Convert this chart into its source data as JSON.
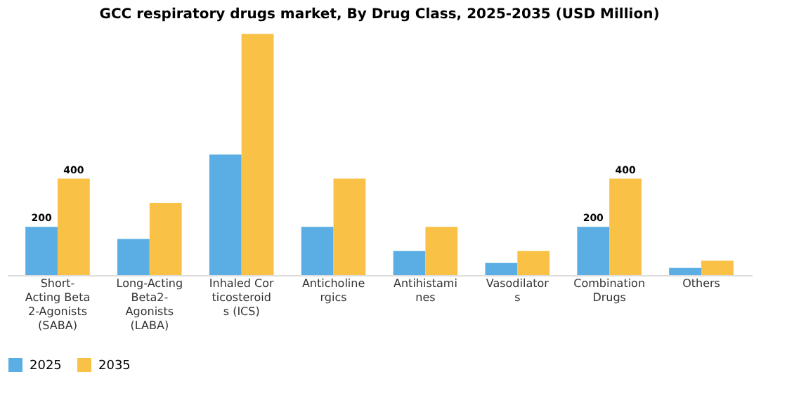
{
  "chart_data": {
    "type": "bar",
    "title": "GCC respiratory drugs market, By Drug Class, 2025-2035 (USD Million)",
    "categories": [
      "Short-Acting Beta2-Agonists (SABA)",
      "Long-Acting Beta2-Agonists (LABA)",
      "Inhaled Corticosteroids (ICS)",
      "Anticholinergics",
      "Antihistamines",
      "Vasodilators",
      "Combination Drugs",
      "Others"
    ],
    "series": [
      {
        "name": "2025",
        "color": "#5aaee3",
        "values": [
          200,
          150,
          500,
          200,
          100,
          50,
          200,
          30
        ],
        "value_labels": [
          "200",
          null,
          null,
          null,
          null,
          null,
          "200",
          null
        ]
      },
      {
        "name": "2035",
        "color": "#f9c247",
        "values": [
          400,
          300,
          1000,
          400,
          200,
          100,
          400,
          60
        ],
        "value_labels": [
          "400",
          null,
          null,
          null,
          null,
          null,
          "400",
          null
        ]
      }
    ],
    "legend": "bottom",
    "grid": false
  }
}
